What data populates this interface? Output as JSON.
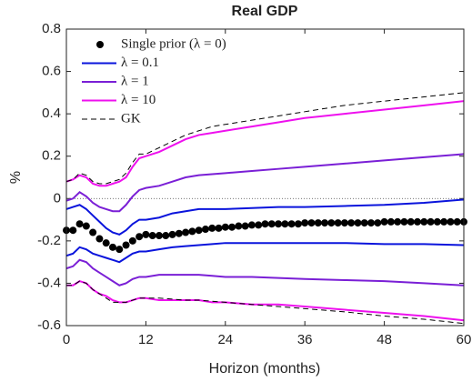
{
  "chart_data": {
    "type": "line",
    "title": "Real GDP",
    "x_label": "Horizon (months)",
    "y_label": "%",
    "xlim": [
      0,
      60
    ],
    "xticks": [
      0,
      12,
      24,
      36,
      48,
      60
    ],
    "ylim": [
      -0.6,
      0.8
    ],
    "yticks": [
      -0.6,
      -0.4,
      -0.2,
      0,
      0.2,
      0.4,
      0.6,
      0.8
    ],
    "reference_line": 0,
    "band_x": [
      0,
      1,
      2,
      3,
      4,
      5,
      6,
      7,
      8,
      9,
      10,
      11,
      12,
      14,
      16,
      18,
      20,
      22,
      24,
      28,
      32,
      36,
      42,
      48,
      54,
      60
    ],
    "series": [
      {
        "name": "Single prior (λ = 0)",
        "color": "#000000",
        "marker": "dot",
        "x": [
          0,
          1,
          2,
          3,
          4,
          5,
          6,
          7,
          8,
          9,
          10,
          11,
          12,
          13,
          14,
          15,
          16,
          17,
          18,
          19,
          20,
          21,
          22,
          23,
          24,
          25,
          26,
          27,
          28,
          29,
          30,
          31,
          32,
          33,
          34,
          35,
          36,
          37,
          38,
          39,
          40,
          41,
          42,
          43,
          44,
          45,
          46,
          47,
          48,
          49,
          50,
          51,
          52,
          53,
          54,
          55,
          56,
          57,
          58,
          59,
          60
        ],
        "values": [
          -0.15,
          -0.15,
          -0.12,
          -0.13,
          -0.16,
          -0.19,
          -0.21,
          -0.23,
          -0.24,
          -0.22,
          -0.2,
          -0.18,
          -0.17,
          -0.175,
          -0.175,
          -0.175,
          -0.17,
          -0.165,
          -0.16,
          -0.155,
          -0.15,
          -0.145,
          -0.14,
          -0.14,
          -0.135,
          -0.135,
          -0.13,
          -0.13,
          -0.125,
          -0.125,
          -0.12,
          -0.12,
          -0.12,
          -0.12,
          -0.12,
          -0.12,
          -0.115,
          -0.115,
          -0.115,
          -0.115,
          -0.115,
          -0.115,
          -0.115,
          -0.115,
          -0.115,
          -0.115,
          -0.115,
          -0.115,
          -0.11,
          -0.11,
          -0.11,
          -0.11,
          -0.11,
          -0.11,
          -0.11,
          -0.11,
          -0.11,
          -0.11,
          -0.11,
          -0.11,
          -0.11
        ]
      },
      {
        "name": "λ = 0.1",
        "color": "#0a14dc",
        "dash": false,
        "upper": [
          -0.05,
          -0.04,
          -0.03,
          -0.05,
          -0.08,
          -0.11,
          -0.14,
          -0.16,
          -0.17,
          -0.15,
          -0.12,
          -0.1,
          -0.1,
          -0.09,
          -0.07,
          -0.06,
          -0.05,
          -0.05,
          -0.05,
          -0.045,
          -0.04,
          -0.04,
          -0.035,
          -0.03,
          -0.02,
          -0.005
        ],
        "lower": [
          -0.27,
          -0.26,
          -0.23,
          -0.24,
          -0.26,
          -0.27,
          -0.28,
          -0.29,
          -0.3,
          -0.28,
          -0.26,
          -0.25,
          -0.25,
          -0.24,
          -0.23,
          -0.225,
          -0.22,
          -0.215,
          -0.21,
          -0.21,
          -0.21,
          -0.21,
          -0.21,
          -0.215,
          -0.215,
          -0.22
        ]
      },
      {
        "name": "λ = 1",
        "color": "#7a1fd6",
        "dash": false,
        "upper": [
          -0.01,
          0.0,
          0.03,
          0.01,
          -0.02,
          -0.04,
          -0.05,
          -0.06,
          -0.06,
          -0.03,
          0.01,
          0.04,
          0.05,
          0.06,
          0.08,
          0.1,
          0.11,
          0.115,
          0.12,
          0.13,
          0.14,
          0.15,
          0.165,
          0.18,
          0.195,
          0.21
        ],
        "lower": [
          -0.33,
          -0.32,
          -0.29,
          -0.3,
          -0.33,
          -0.35,
          -0.37,
          -0.39,
          -0.41,
          -0.4,
          -0.38,
          -0.37,
          -0.37,
          -0.36,
          -0.36,
          -0.36,
          -0.36,
          -0.365,
          -0.37,
          -0.37,
          -0.375,
          -0.38,
          -0.385,
          -0.39,
          -0.4,
          -0.41
        ]
      },
      {
        "name": "λ = 10",
        "color": "#ee10ee",
        "dash": false,
        "upper": [
          0.08,
          0.09,
          0.11,
          0.1,
          0.07,
          0.06,
          0.06,
          0.07,
          0.08,
          0.1,
          0.15,
          0.19,
          0.2,
          0.22,
          0.25,
          0.28,
          0.3,
          0.31,
          0.32,
          0.34,
          0.36,
          0.38,
          0.4,
          0.42,
          0.44,
          0.46
        ],
        "lower": [
          -0.41,
          -0.41,
          -0.39,
          -0.4,
          -0.43,
          -0.45,
          -0.46,
          -0.48,
          -0.49,
          -0.49,
          -0.48,
          -0.47,
          -0.47,
          -0.48,
          -0.48,
          -0.48,
          -0.48,
          -0.49,
          -0.49,
          -0.5,
          -0.5,
          -0.51,
          -0.525,
          -0.54,
          -0.555,
          -0.575
        ]
      },
      {
        "name": "GK",
        "color": "#000000",
        "dash": true,
        "upper": [
          0.08,
          0.09,
          0.12,
          0.11,
          0.08,
          0.07,
          0.07,
          0.08,
          0.09,
          0.12,
          0.17,
          0.21,
          0.21,
          0.24,
          0.27,
          0.3,
          0.32,
          0.34,
          0.35,
          0.37,
          0.39,
          0.41,
          0.44,
          0.46,
          0.48,
          0.5
        ],
        "lower": [
          -0.41,
          -0.41,
          -0.39,
          -0.4,
          -0.43,
          -0.45,
          -0.47,
          -0.49,
          -0.49,
          -0.49,
          -0.48,
          -0.47,
          -0.47,
          -0.47,
          -0.475,
          -0.48,
          -0.48,
          -0.485,
          -0.49,
          -0.5,
          -0.51,
          -0.52,
          -0.535,
          -0.555,
          -0.57,
          -0.59
        ]
      }
    ]
  }
}
